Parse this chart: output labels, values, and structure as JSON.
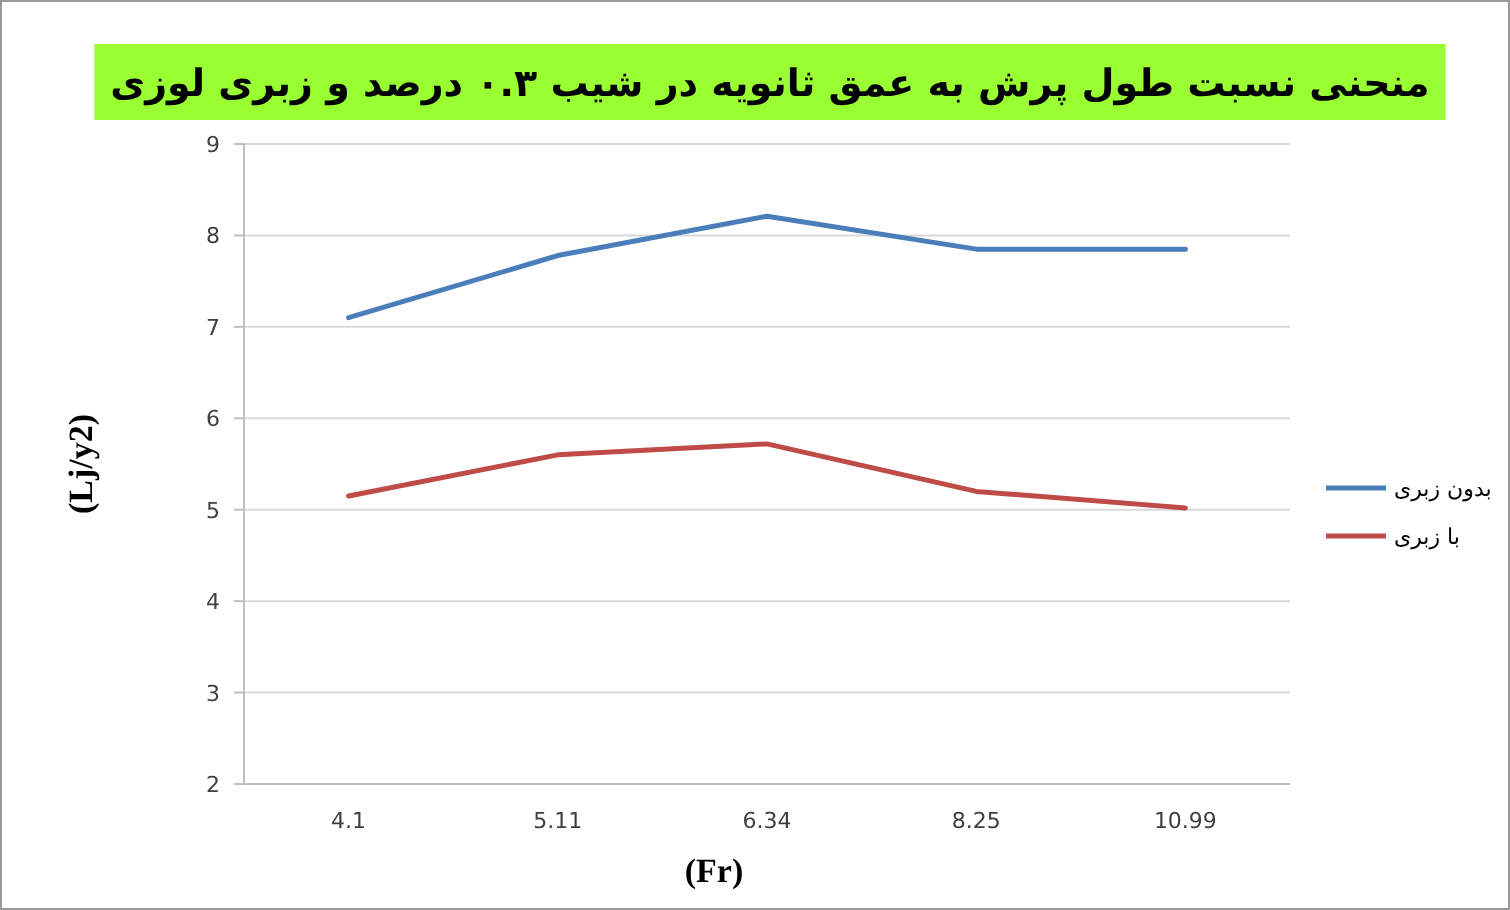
{
  "chart_data": {
    "type": "line",
    "title": "منحنی نسبت طول پرش به عمق ثانویه در شیب ۰.۳ درصد و زبری لوزی",
    "xlabel": "(Fr)",
    "ylabel": "(Lj/y2)",
    "categories": [
      "4.1",
      "5.11",
      "6.34",
      "8.25",
      "10.99"
    ],
    "series": [
      {
        "name": "بدون زبری",
        "color": "#4a7ebb",
        "values": [
          7.1,
          7.78,
          8.21,
          7.85,
          7.85
        ]
      },
      {
        "name": "با زبری",
        "color": "#be4b48",
        "values": [
          5.15,
          5.6,
          5.72,
          5.2,
          5.02
        ]
      }
    ],
    "ylim": [
      2,
      9
    ],
    "yticks": [
      2,
      3,
      4,
      5,
      6,
      7,
      8,
      9
    ],
    "grid": "y",
    "legend": "right",
    "marker": "none",
    "line_style": "solid"
  }
}
